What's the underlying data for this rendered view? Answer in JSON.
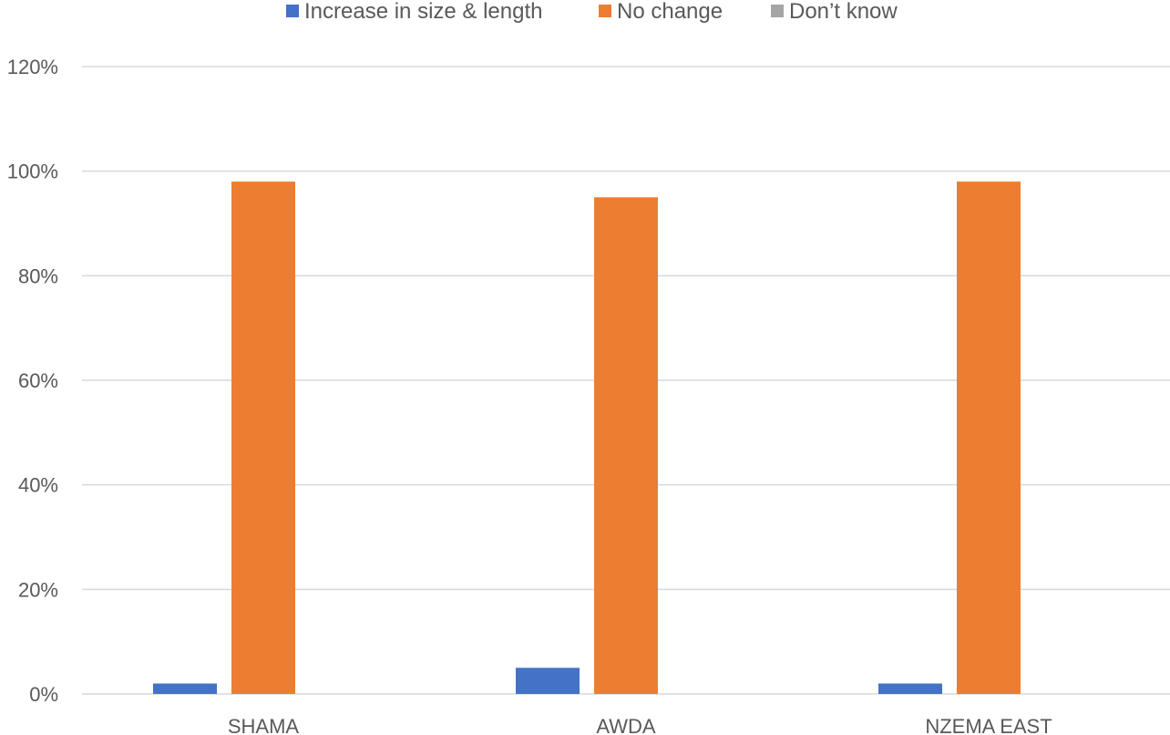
{
  "chart_data": {
    "type": "bar",
    "title": "",
    "xlabel": "",
    "ylabel": "",
    "categories": [
      "SHAMA",
      "AWDA",
      "NZEMA EAST"
    ],
    "series": [
      {
        "name": "Increase in size & length",
        "color": "#4472c4",
        "values": [
          2,
          5,
          2
        ]
      },
      {
        "name": "No change",
        "color": "#ed7d31",
        "values": [
          98,
          95,
          98
        ]
      },
      {
        "name": "Don’t know",
        "color": "#a5a5a5",
        "values": [
          0,
          0,
          0
        ]
      }
    ],
    "ylim": [
      0,
      120
    ],
    "yticks": [
      "0%",
      "20%",
      "40%",
      "60%",
      "80%",
      "100%",
      "120%"
    ],
    "ytick_values": [
      0,
      20,
      40,
      60,
      80,
      100,
      120
    ],
    "grid": true,
    "legend_position": "top"
  }
}
